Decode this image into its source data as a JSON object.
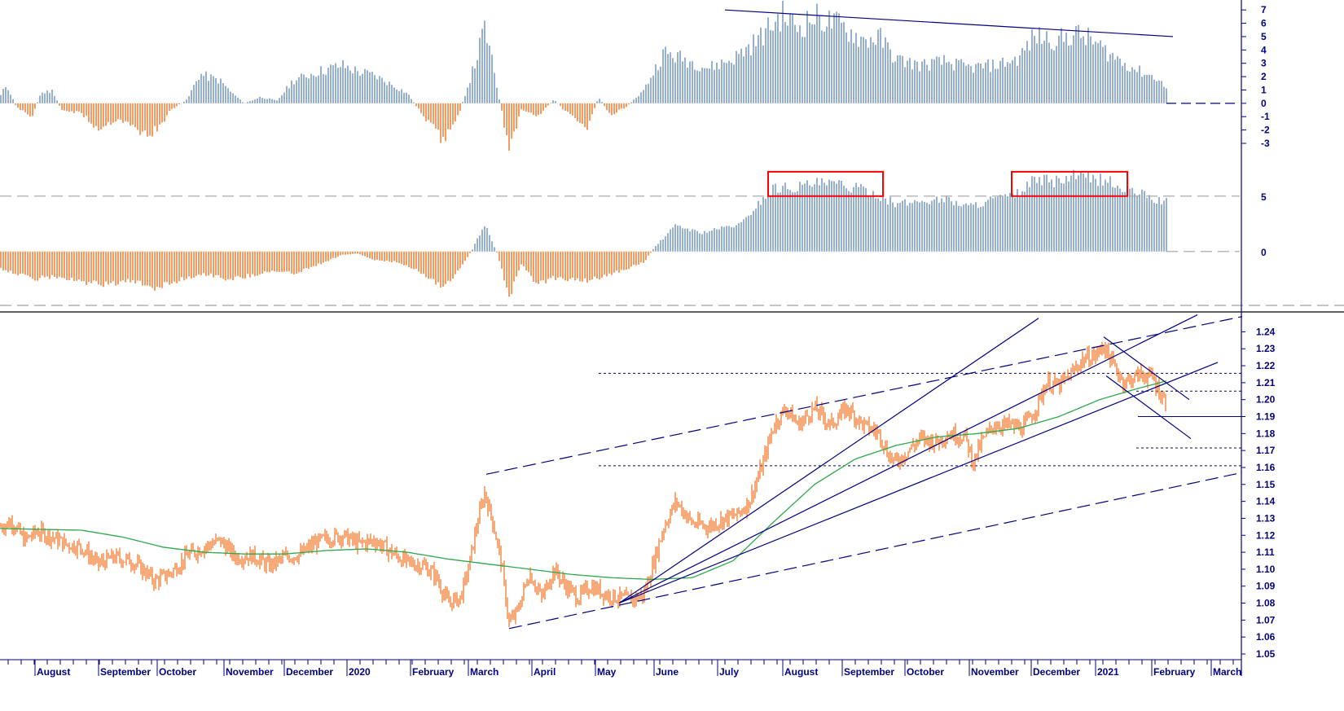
{
  "chart_data": [
    {
      "type": "bar",
      "panel": "oscillator-top",
      "y_ticks": [
        "7",
        "6",
        "5",
        "4",
        "3",
        "2",
        "1",
        "0",
        "-1",
        "-2",
        "-3"
      ],
      "ylim": [
        -3,
        7.5
      ],
      "colors": {
        "positive": "#6a8fbf",
        "negative": "#f07020",
        "line": "#000080"
      },
      "profile": [
        [
          0,
          0.5
        ],
        [
          8,
          1.5
        ],
        [
          20,
          -0.3
        ],
        [
          40,
          -1
        ],
        [
          50,
          0.8
        ],
        [
          65,
          1
        ],
        [
          75,
          -0.5
        ],
        [
          100,
          -0.8
        ],
        [
          120,
          -2
        ],
        [
          145,
          -1.2
        ],
        [
          180,
          -2.5
        ],
        [
          195,
          -2
        ],
        [
          210,
          -0.5
        ],
        [
          230,
          0.3
        ],
        [
          245,
          2.3
        ],
        [
          270,
          1.8
        ],
        [
          285,
          0.8
        ],
        [
          300,
          0
        ],
        [
          320,
          0.5
        ],
        [
          340,
          0.2
        ],
        [
          360,
          1.8
        ],
        [
          390,
          2.5
        ],
        [
          420,
          3
        ],
        [
          440,
          2.5
        ],
        [
          460,
          2.2
        ],
        [
          480,
          1.5
        ],
        [
          500,
          0.8
        ],
        [
          520,
          -1
        ],
        [
          545,
          -3
        ],
        [
          565,
          -0.5
        ],
        [
          585,
          3.5
        ],
        [
          595,
          6
        ],
        [
          605,
          3
        ],
        [
          620,
          -2
        ],
        [
          625,
          -4
        ],
        [
          640,
          -0.5
        ],
        [
          660,
          -1
        ],
        [
          680,
          0.3
        ],
        [
          700,
          -1
        ],
        [
          720,
          -2
        ],
        [
          735,
          0.5
        ],
        [
          750,
          -1
        ],
        [
          770,
          -0.2
        ],
        [
          790,
          1
        ],
        [
          815,
          4
        ],
        [
          840,
          3.5
        ],
        [
          870,
          2.8
        ],
        [
          900,
          3.5
        ],
        [
          930,
          5
        ],
        [
          960,
          7
        ],
        [
          980,
          6
        ],
        [
          1000,
          6.8
        ],
        [
          1030,
          6.2
        ],
        [
          1060,
          5
        ],
        [
          1080,
          5.2
        ],
        [
          1100,
          3.5
        ],
        [
          1130,
          3
        ],
        [
          1160,
          3.3
        ],
        [
          1190,
          2.8
        ],
        [
          1220,
          3
        ],
        [
          1250,
          3.5
        ],
        [
          1270,
          5.3
        ],
        [
          1300,
          5
        ],
        [
          1320,
          5.5
        ],
        [
          1340,
          5
        ],
        [
          1360,
          4
        ],
        [
          1380,
          3.2
        ],
        [
          1400,
          2.5
        ],
        [
          1420,
          2
        ],
        [
          1432,
          1.2
        ]
      ],
      "trend_start": [
        890,
        7
      ],
      "trend_end": [
        1440,
        5
      ],
      "bar_end_x": 1432,
      "dash_end_x": 1522
    },
    {
      "type": "bar",
      "panel": "oscillator-middle",
      "y_ticks": [
        "5",
        "0"
      ],
      "ylim": [
        -4.5,
        8
      ],
      "colors": {
        "positive": "#6a8fbf",
        "negative": "#f07020",
        "box": "#ff0000"
      },
      "profile": [
        [
          0,
          -1.5
        ],
        [
          40,
          -2.5
        ],
        [
          70,
          -2.3
        ],
        [
          100,
          -2.8
        ],
        [
          130,
          -3
        ],
        [
          160,
          -2.7
        ],
        [
          190,
          -3.3
        ],
        [
          220,
          -2.6
        ],
        [
          250,
          -2
        ],
        [
          280,
          -2.5
        ],
        [
          300,
          -2.3
        ],
        [
          330,
          -1.8
        ],
        [
          360,
          -2
        ],
        [
          390,
          -1.2
        ],
        [
          420,
          -0.3
        ],
        [
          440,
          -0.2
        ],
        [
          460,
          -0.8
        ],
        [
          490,
          -1
        ],
        [
          520,
          -2
        ],
        [
          545,
          -3.3
        ],
        [
          565,
          -1.5
        ],
        [
          580,
          0.2
        ],
        [
          595,
          2.5
        ],
        [
          610,
          -0.1
        ],
        [
          620,
          -2.7
        ],
        [
          625,
          -4.2
        ],
        [
          640,
          -1.2
        ],
        [
          660,
          -3
        ],
        [
          680,
          -2.4
        ],
        [
          700,
          -2.5
        ],
        [
          720,
          -2.7
        ],
        [
          740,
          -2.3
        ],
        [
          760,
          -1.8
        ],
        [
          790,
          -1
        ],
        [
          805,
          0.5
        ],
        [
          830,
          2.4
        ],
        [
          860,
          1.7
        ],
        [
          890,
          2.2
        ],
        [
          910,
          2.5
        ],
        [
          930,
          4.3
        ],
        [
          950,
          5.8
        ],
        [
          980,
          5.9
        ],
        [
          1000,
          6.2
        ],
        [
          1030,
          6.1
        ],
        [
          1060,
          5.6
        ],
        [
          1080,
          5.1
        ],
        [
          1100,
          4.3
        ],
        [
          1130,
          4.6
        ],
        [
          1160,
          4.8
        ],
        [
          1190,
          4.1
        ],
        [
          1220,
          4.8
        ],
        [
          1245,
          5
        ],
        [
          1270,
          6.5
        ],
        [
          1300,
          6.4
        ],
        [
          1320,
          6.9
        ],
        [
          1340,
          6.6
        ],
        [
          1360,
          6.5
        ],
        [
          1380,
          5.5
        ],
        [
          1400,
          5.3
        ],
        [
          1420,
          4.7
        ],
        [
          1432,
          4.5
        ]
      ],
      "highlight_boxes": [
        [
          943,
          1084
        ],
        [
          1242,
          1384
        ]
      ],
      "highlight_level": 5,
      "highlight_top": 7.2,
      "bar_end_x": 1432,
      "dash_end_x": 1522
    },
    {
      "type": "line",
      "panel": "price",
      "y_ticks": [
        "1.24",
        "1.23",
        "1.22",
        "1.21",
        "1.20",
        "1.19",
        "1.18",
        "1.17",
        "1.16",
        "1.15",
        "1.14",
        "1.13",
        "1.12",
        "1.11",
        "1.10",
        "1.09",
        "1.08",
        "1.07",
        "1.06",
        "1.05"
      ],
      "ylim": [
        1.05,
        1.245
      ],
      "colors": {
        "price": "#f07020",
        "ma": "#2ea84a",
        "lines": "#000080",
        "levels": "#000080"
      },
      "months": [
        "August",
        "September",
        "October",
        "November",
        "December",
        "2020",
        "February",
        "March",
        "April",
        "May",
        "June",
        "July",
        "August",
        "September",
        "October",
        "November",
        "December",
        "2021",
        "February",
        "March"
      ],
      "month_x": [
        45,
        123,
        195,
        277,
        351,
        428,
        506,
        577,
        655,
        733,
        805,
        883,
        963,
        1036,
        1113,
        1192,
        1268,
        1347,
        1416,
        1489
      ],
      "price_profile": [
        [
          0,
          1.125
        ],
        [
          15,
          1.128
        ],
        [
          30,
          1.117
        ],
        [
          45,
          1.122
        ],
        [
          60,
          1.12
        ],
        [
          80,
          1.115
        ],
        [
          100,
          1.113
        ],
        [
          120,
          1.103
        ],
        [
          140,
          1.107
        ],
        [
          160,
          1.105
        ],
        [
          175,
          1.1
        ],
        [
          190,
          1.093
        ],
        [
          210,
          1.098
        ],
        [
          230,
          1.108
        ],
        [
          250,
          1.113
        ],
        [
          270,
          1.117
        ],
        [
          290,
          1.107
        ],
        [
          310,
          1.108
        ],
        [
          330,
          1.102
        ],
        [
          350,
          1.107
        ],
        [
          370,
          1.109
        ],
        [
          385,
          1.115
        ],
        [
          400,
          1.118
        ],
        [
          420,
          1.12
        ],
        [
          440,
          1.115
        ],
        [
          460,
          1.117
        ],
        [
          480,
          1.11
        ],
        [
          500,
          1.104
        ],
        [
          520,
          1.102
        ],
        [
          535,
          1.096
        ],
        [
          550,
          1.08
        ],
        [
          565,
          1.083
        ],
        [
          575,
          1.1
        ],
        [
          585,
          1.125
        ],
        [
          595,
          1.145
        ],
        [
          605,
          1.128
        ],
        [
          615,
          1.105
        ],
        [
          625,
          1.068
        ],
        [
          635,
          1.075
        ],
        [
          650,
          1.098
        ],
        [
          665,
          1.083
        ],
        [
          680,
          1.1
        ],
        [
          695,
          1.09
        ],
        [
          710,
          1.083
        ],
        [
          725,
          1.09
        ],
        [
          745,
          1.085
        ],
        [
          760,
          1.083
        ],
        [
          775,
          1.082
        ],
        [
          790,
          1.085
        ],
        [
          800,
          1.1
        ],
        [
          815,
          1.125
        ],
        [
          830,
          1.14
        ],
        [
          850,
          1.127
        ],
        [
          870,
          1.125
        ],
        [
          890,
          1.13
        ],
        [
          905,
          1.132
        ],
        [
          920,
          1.14
        ],
        [
          935,
          1.16
        ],
        [
          950,
          1.185
        ],
        [
          965,
          1.195
        ],
        [
          980,
          1.185
        ],
        [
          1000,
          1.195
        ],
        [
          1020,
          1.185
        ],
        [
          1040,
          1.195
        ],
        [
          1060,
          1.185
        ],
        [
          1080,
          1.18
        ],
        [
          1090,
          1.168
        ],
        [
          1100,
          1.163
        ],
        [
          1115,
          1.17
        ],
        [
          1130,
          1.177
        ],
        [
          1150,
          1.175
        ],
        [
          1165,
          1.18
        ],
        [
          1185,
          1.178
        ],
        [
          1195,
          1.163
        ],
        [
          1205,
          1.175
        ],
        [
          1220,
          1.185
        ],
        [
          1240,
          1.185
        ],
        [
          1255,
          1.183
        ],
        [
          1270,
          1.193
        ],
        [
          1285,
          1.21
        ],
        [
          1300,
          1.208
        ],
        [
          1315,
          1.215
        ],
        [
          1330,
          1.224
        ],
        [
          1345,
          1.226
        ],
        [
          1355,
          1.232
        ],
        [
          1365,
          1.222
        ],
        [
          1380,
          1.21
        ],
        [
          1400,
          1.215
        ],
        [
          1415,
          1.213
        ],
        [
          1425,
          1.203
        ],
        [
          1432,
          1.198
        ]
      ],
      "ma_profile": [
        [
          0,
          1.124
        ],
        [
          100,
          1.123
        ],
        [
          150,
          1.119
        ],
        [
          200,
          1.113
        ],
        [
          250,
          1.11
        ],
        [
          300,
          1.109
        ],
        [
          350,
          1.109
        ],
        [
          400,
          1.111
        ],
        [
          450,
          1.112
        ],
        [
          500,
          1.11
        ],
        [
          550,
          1.106
        ],
        [
          600,
          1.103
        ],
        [
          650,
          1.1
        ],
        [
          700,
          1.097
        ],
        [
          750,
          1.095
        ],
        [
          800,
          1.094
        ],
        [
          850,
          1.095
        ],
        [
          900,
          1.105
        ],
        [
          950,
          1.128
        ],
        [
          1000,
          1.15
        ],
        [
          1050,
          1.165
        ],
        [
          1100,
          1.173
        ],
        [
          1150,
          1.178
        ],
        [
          1200,
          1.18
        ],
        [
          1250,
          1.183
        ],
        [
          1300,
          1.19
        ],
        [
          1350,
          1.2
        ],
        [
          1400,
          1.207
        ],
        [
          1432,
          1.211
        ]
      ],
      "trendlines": [
        {
          "from": [
            597,
            1.156
          ],
          "to": [
            1525,
            1.249
          ],
          "dashed": true
        },
        {
          "from": [
            625,
            1.065
          ],
          "to": [
            1525,
            1.157
          ],
          "dashed": true
        },
        {
          "from": [
            760,
            1.08
          ],
          "to": [
            1275,
            1.248
          ],
          "dashed": false
        },
        {
          "from": [
            760,
            1.08
          ],
          "to": [
            1470,
            1.25
          ],
          "dashed": false
        },
        {
          "from": [
            760,
            1.08
          ],
          "to": [
            1495,
            1.222
          ],
          "dashed": false
        },
        {
          "from": [
            1355,
            1.237
          ],
          "to": [
            1460,
            1.2
          ],
          "dashed": false
        },
        {
          "from": [
            1358,
            1.214
          ],
          "to": [
            1462,
            1.177
          ],
          "dashed": false
        }
      ],
      "levels": [
        {
          "y": 1.2155,
          "from": 735,
          "to": 1525,
          "style": "dotted"
        },
        {
          "y": 1.161,
          "from": 735,
          "to": 1525,
          "style": "dotted"
        },
        {
          "y": 1.205,
          "from": 1395,
          "to": 1525,
          "style": "dotted"
        },
        {
          "y": 1.1715,
          "from": 1395,
          "to": 1525,
          "style": "dotted"
        },
        {
          "y": 1.19,
          "from": 1397,
          "to": 1525,
          "style": "solid"
        }
      ]
    }
  ]
}
